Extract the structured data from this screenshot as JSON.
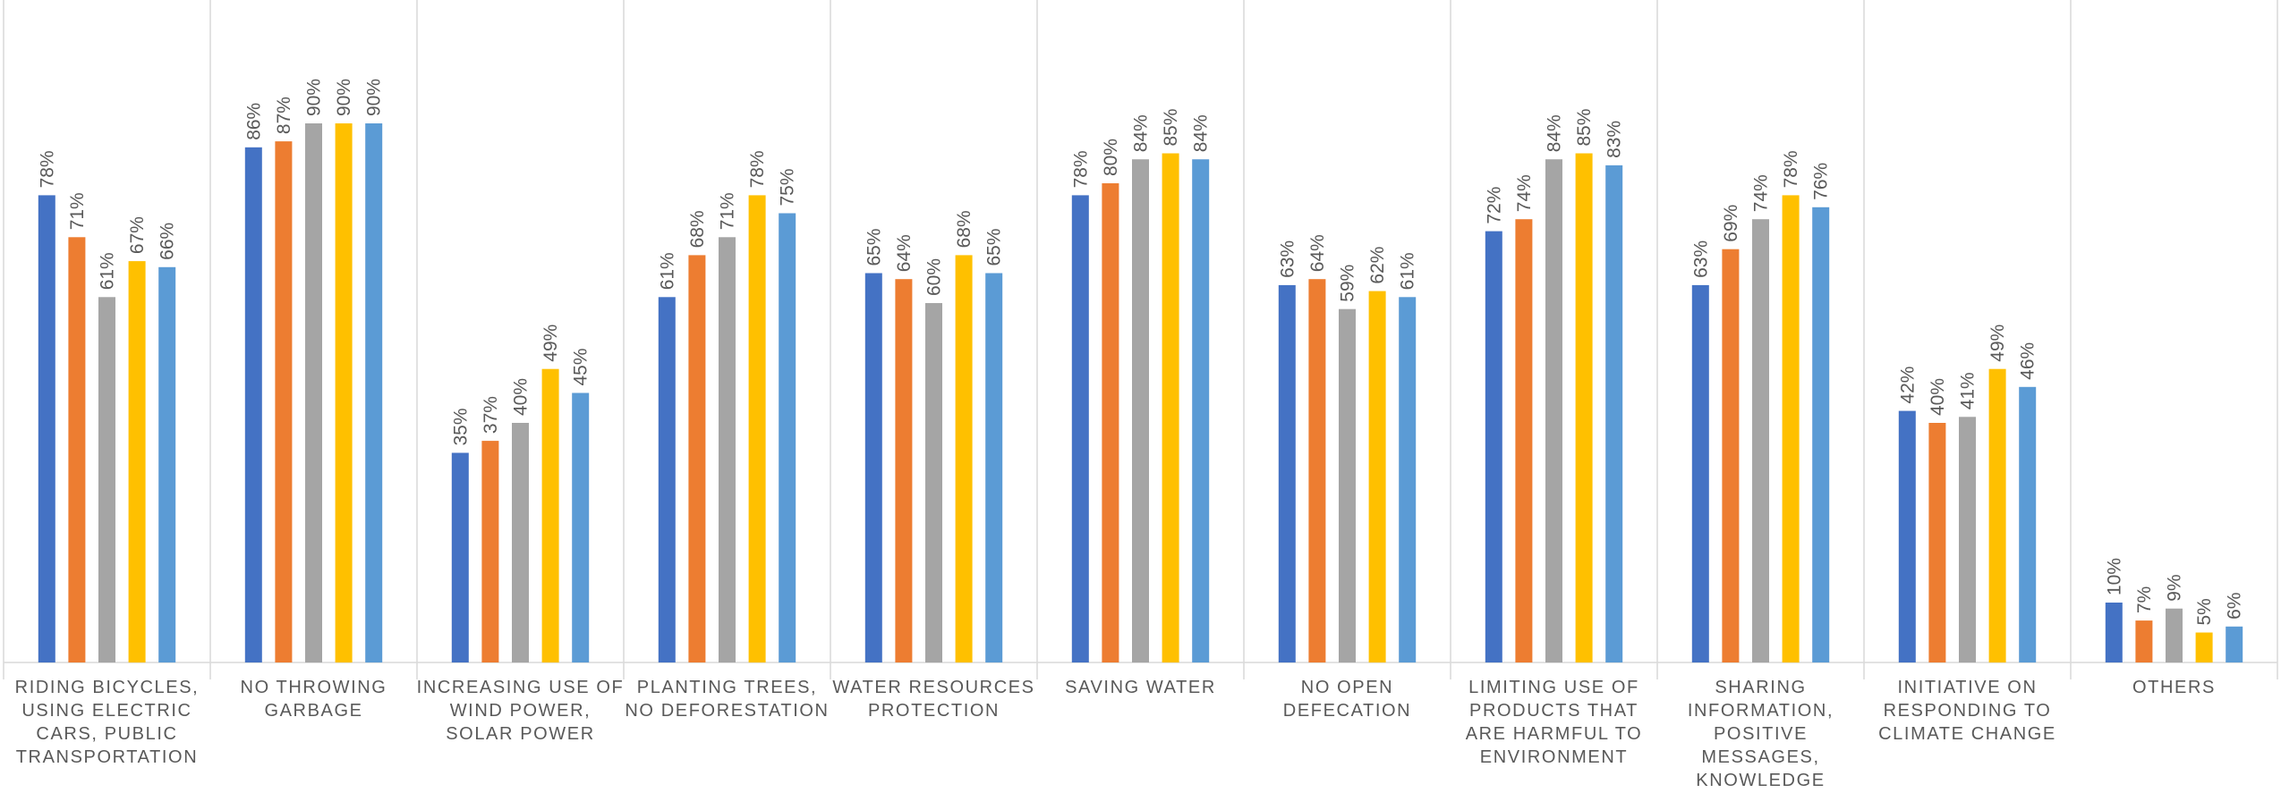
{
  "chart_data": {
    "type": "bar",
    "title": "",
    "xlabel": "",
    "ylabel": "",
    "ylim": [
      0,
      100
    ],
    "grid": false,
    "legend": "none",
    "value_suffix": "%",
    "categories": [
      [
        "RIDING BICYCLES,",
        "USING ELECTRIC",
        "CARS, PUBLIC",
        "TRANSPORTATION"
      ],
      [
        "NO THROWING",
        "GARBAGE"
      ],
      [
        "INCREASING USE OF",
        "WIND POWER,",
        "SOLAR POWER"
      ],
      [
        "PLANTING TREES,",
        "NO DEFORESTATION"
      ],
      [
        "WATER RESOURCES",
        "PROTECTION"
      ],
      [
        "SAVING WATER"
      ],
      [
        "NO OPEN",
        "DEFECATION"
      ],
      [
        "LIMITING USE OF",
        "PRODUCTS THAT",
        "ARE HARMFUL TO",
        "ENVIRONMENT"
      ],
      [
        "SHARING",
        "INFORMATION,",
        "POSITIVE",
        "MESSAGES,",
        "KNOWLEDGE"
      ],
      [
        "INITIATIVE ON",
        "RESPONDING TO",
        "CLIMATE CHANGE"
      ],
      [
        "OTHERS"
      ]
    ],
    "series": [
      {
        "color": "#4472C4",
        "values": [
          78,
          86,
          35,
          61,
          65,
          78,
          63,
          72,
          63,
          42,
          10
        ]
      },
      {
        "color": "#ED7D31",
        "values": [
          71,
          87,
          37,
          68,
          64,
          80,
          64,
          74,
          69,
          40,
          7
        ]
      },
      {
        "color": "#A5A5A5",
        "values": [
          61,
          90,
          40,
          71,
          60,
          84,
          59,
          84,
          74,
          41,
          9
        ]
      },
      {
        "color": "#FFC000",
        "values": [
          67,
          90,
          49,
          78,
          68,
          85,
          62,
          85,
          78,
          49,
          5
        ]
      },
      {
        "color": "#5B9BD5",
        "values": [
          66,
          90,
          45,
          75,
          65,
          84,
          61,
          83,
          76,
          46,
          6
        ]
      }
    ],
    "colors": {
      "separator": "#D9D9D9",
      "axis": "#D9D9D9",
      "label_text": "#595959"
    }
  }
}
